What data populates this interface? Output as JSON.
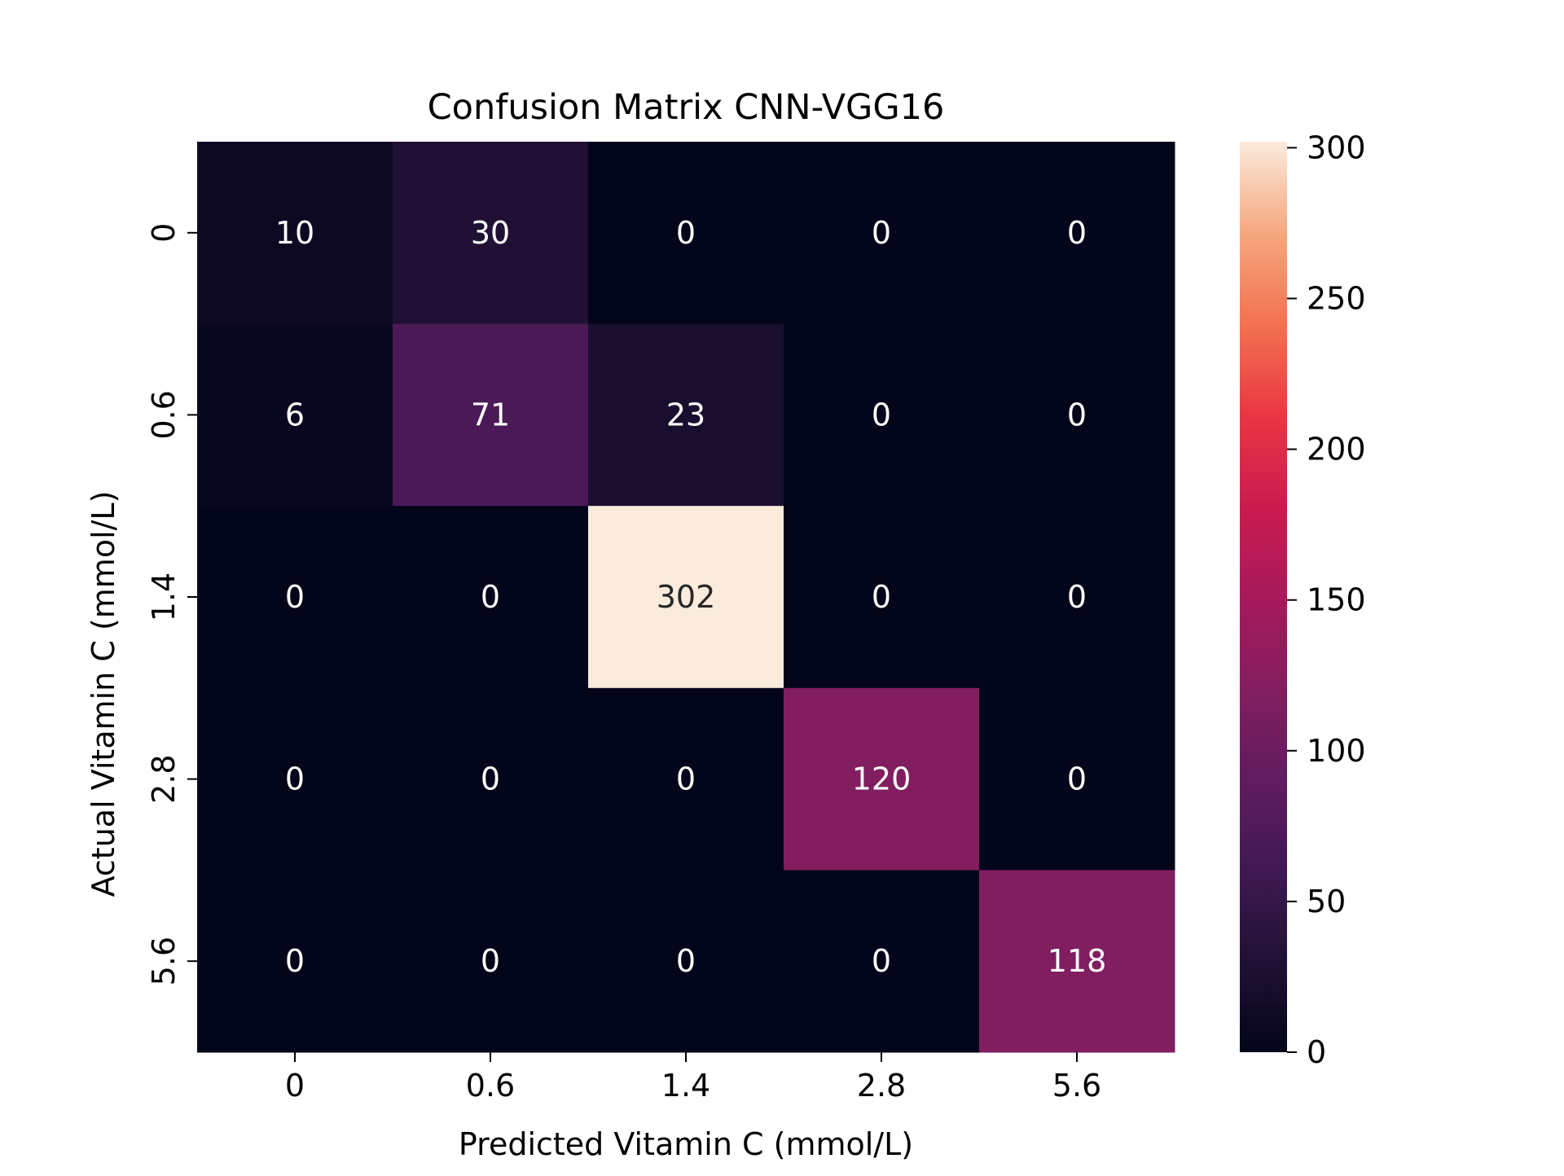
{
  "chart_data": {
    "type": "heatmap",
    "title": "Confusion Matrix CNN-VGG16",
    "xlabel": "Predicted Vitamin C (mmol/L)",
    "ylabel": "Actual Vitamin C (mmol/L)",
    "x_categories": [
      "0",
      "0.6",
      "1.4",
      "2.8",
      "5.6"
    ],
    "y_categories": [
      "0",
      "0.6",
      "1.4",
      "2.8",
      "5.6"
    ],
    "values": [
      [
        10,
        30,
        0,
        0,
        0
      ],
      [
        6,
        71,
        23,
        0,
        0
      ],
      [
        0,
        0,
        302,
        0,
        0
      ],
      [
        0,
        0,
        0,
        120,
        0
      ],
      [
        0,
        0,
        0,
        0,
        118
      ]
    ],
    "colorbar": {
      "min": 0,
      "max": 302,
      "ticks": [
        "0",
        "50",
        "100",
        "150",
        "200",
        "250",
        "300"
      ],
      "colormap": "rocket"
    }
  }
}
